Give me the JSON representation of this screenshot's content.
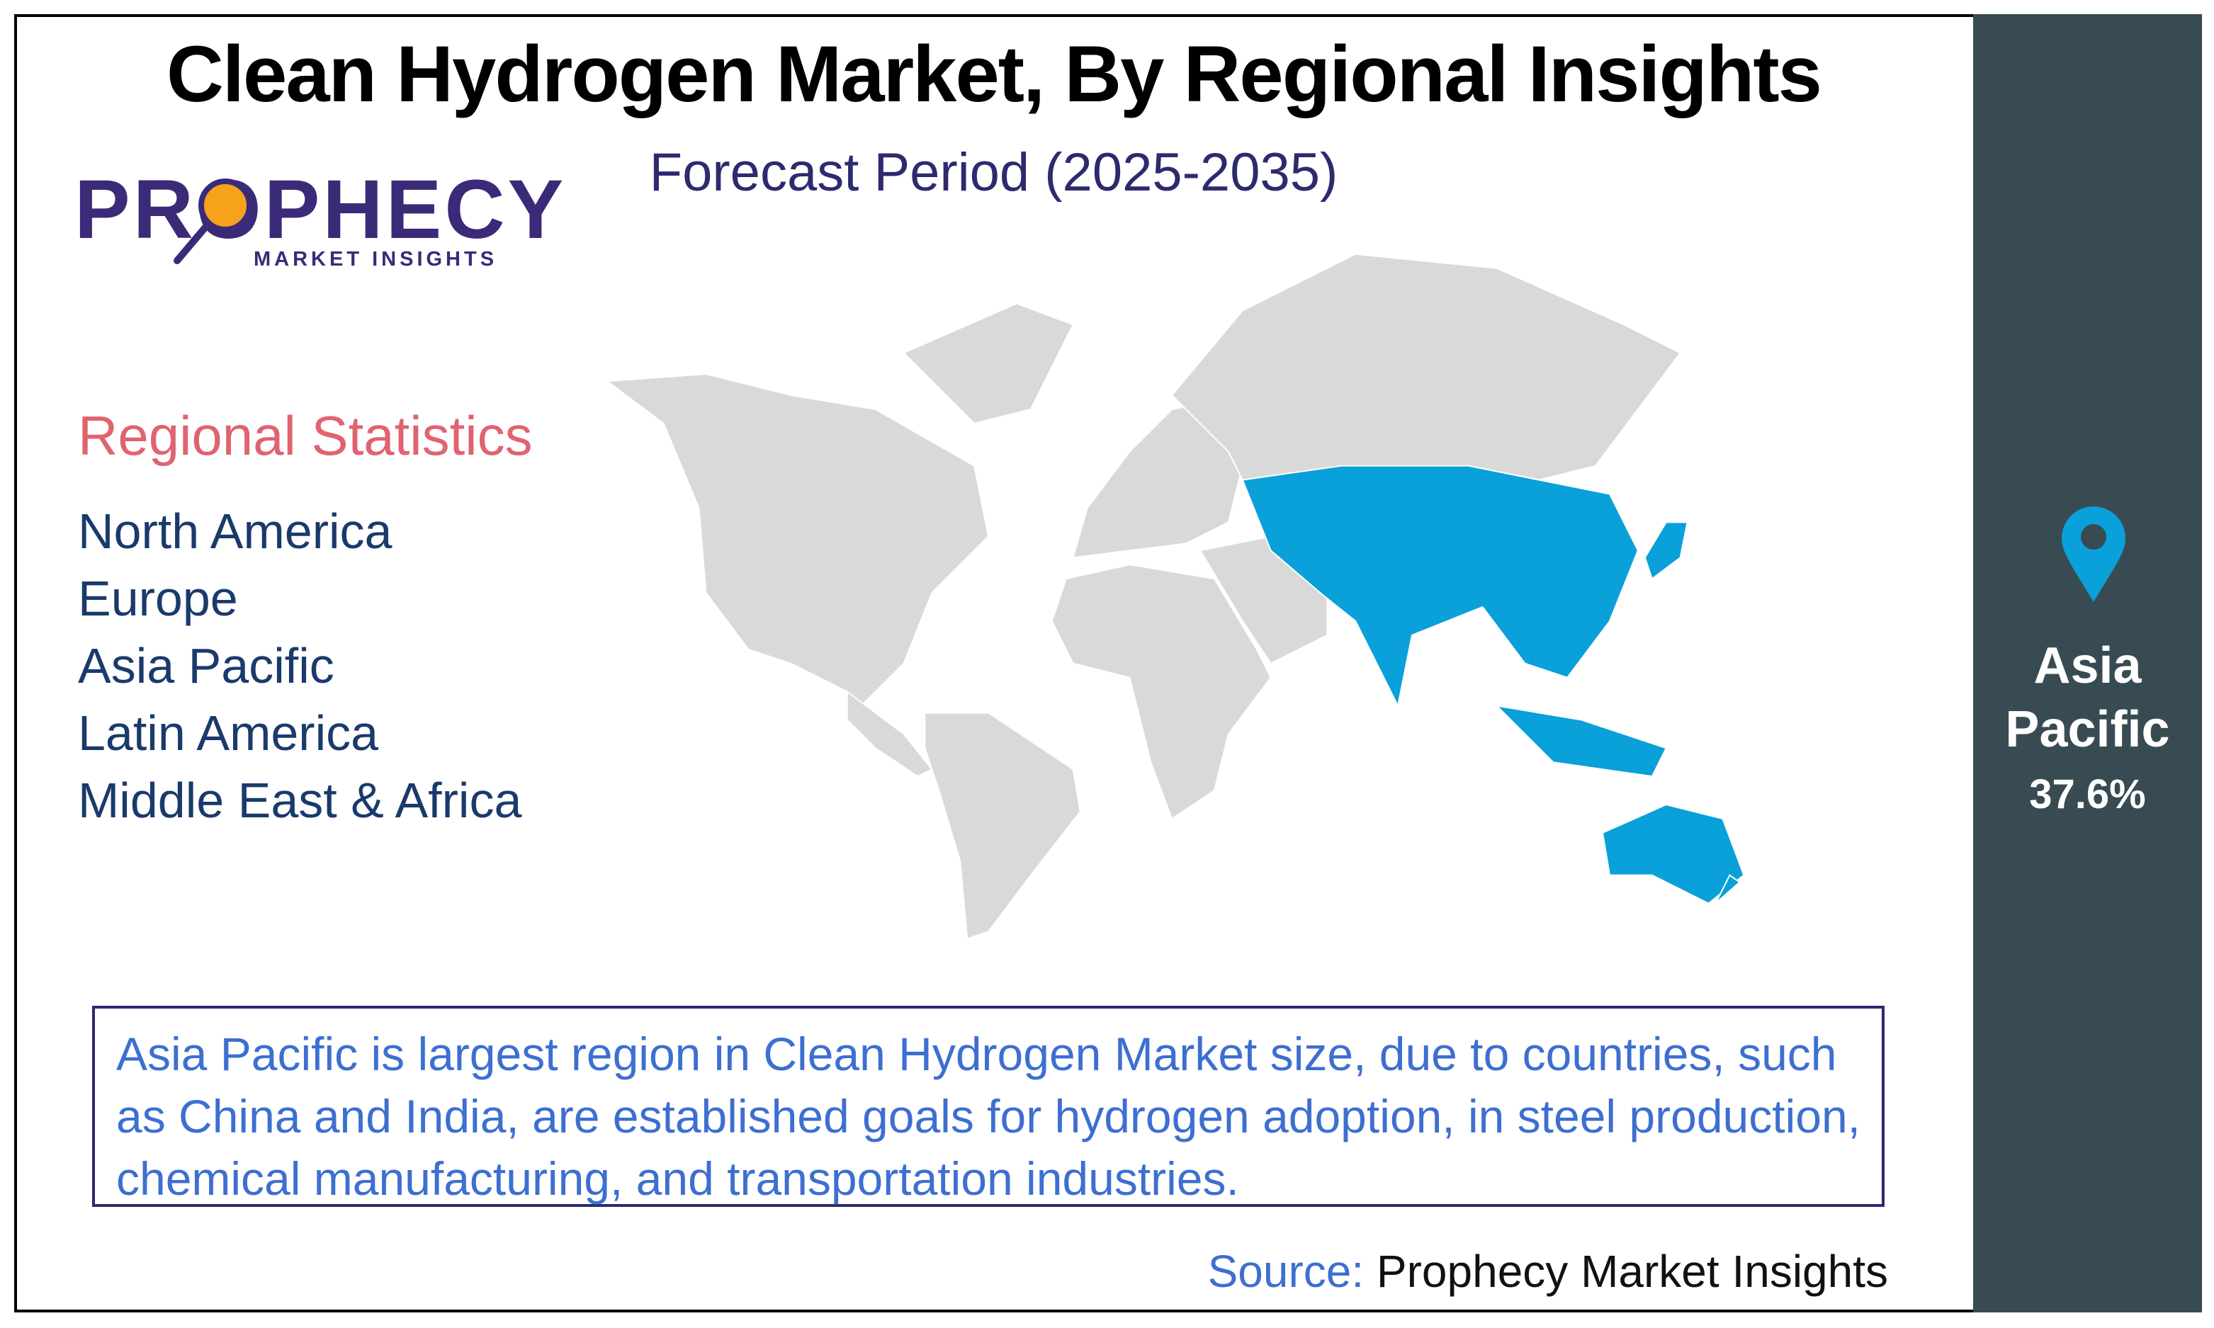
{
  "header": {
    "title": "Clean Hydrogen Market, By Regional Insights",
    "subtitle": "Forecast Period (2025-2035)"
  },
  "logo": {
    "name": "PROPHECY",
    "tagline": "MARKET INSIGHTS"
  },
  "regional_statistics": {
    "title": "Regional Statistics",
    "regions": [
      "North America",
      "Europe",
      "Asia Pacific",
      "Latin America",
      "Middle East & Africa"
    ]
  },
  "highlight": {
    "region": "Asia Pacific",
    "share": "37.6%"
  },
  "description": "Asia Pacific is largest region in Clean Hydrogen Market size, due to countries, such as China and India, are established goals for hydrogen adoption, in steel production, chemical manufacturing, and transportation industries.",
  "source": {
    "label": "Source:",
    "name": "Prophecy Market Insights"
  }
}
